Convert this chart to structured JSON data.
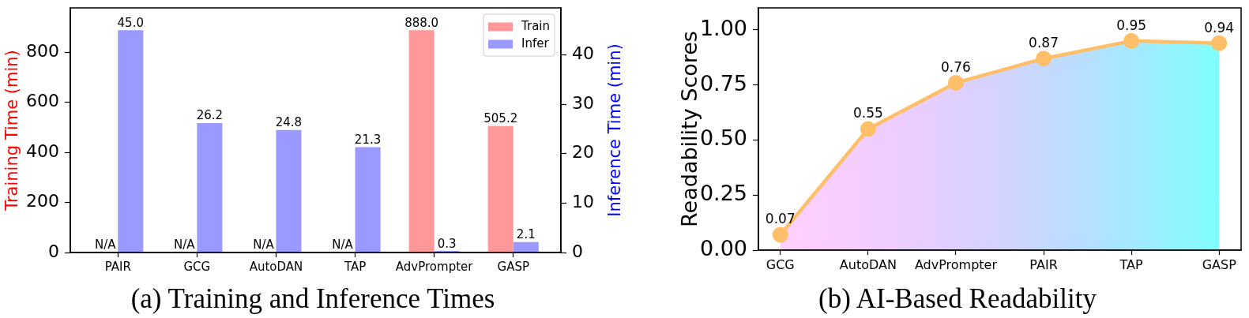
{
  "chart_data": [
    {
      "type": "bar",
      "title": "(a) Training and Inference Times",
      "categories": [
        "PAIR",
        "GCG",
        "AutoDAN",
        "TAP",
        "AdvPrompter",
        "GASP"
      ],
      "series": [
        {
          "name": "Train",
          "color": "#ff9999",
          "values": [
            null,
            null,
            null,
            null,
            888.0,
            505.2
          ],
          "value_labels": [
            "N/A",
            "N/A",
            "N/A",
            "N/A",
            "888.0",
            "505.2"
          ]
        },
        {
          "name": "Infer",
          "color": "#9999ff",
          "axis": "y2",
          "values": [
            45.0,
            26.2,
            24.8,
            21.3,
            0.3,
            2.1
          ],
          "value_labels": [
            "45.0",
            "26.2",
            "24.8",
            "21.3",
            "0.3",
            "2.1"
          ]
        }
      ],
      "ylabel": "Training Time (min)",
      "y2label": "Inference Time (min)",
      "ylim": [
        0,
        977
      ],
      "yticks": [
        0,
        200,
        400,
        600,
        800
      ],
      "y2lim": [
        0,
        49.5
      ],
      "y2ticks": [
        0,
        10,
        20,
        30,
        40
      ],
      "legend": "top right"
    },
    {
      "type": "area",
      "title": "(b) AI-Based Readability",
      "categories": [
        "GCG",
        "AutoDAN",
        "AdvPrompter",
        "PAIR",
        "TAP",
        "GASP"
      ],
      "values": [
        0.07,
        0.55,
        0.76,
        0.87,
        0.95,
        0.94
      ],
      "color": "#ffbf69",
      "ylabel": "Readability Scores",
      "ylim": [
        0,
        1.1
      ],
      "yticks": [
        {
          "value": 0,
          "label": "0.00"
        },
        {
          "value": 0.25,
          "label": "0.25"
        },
        {
          "value": 0.5,
          "label": "0.50"
        },
        {
          "value": 0.75,
          "label": "0.75"
        },
        {
          "value": 1,
          "label": "1.00"
        }
      ],
      "marker": "circle",
      "data_labels": true
    }
  ]
}
